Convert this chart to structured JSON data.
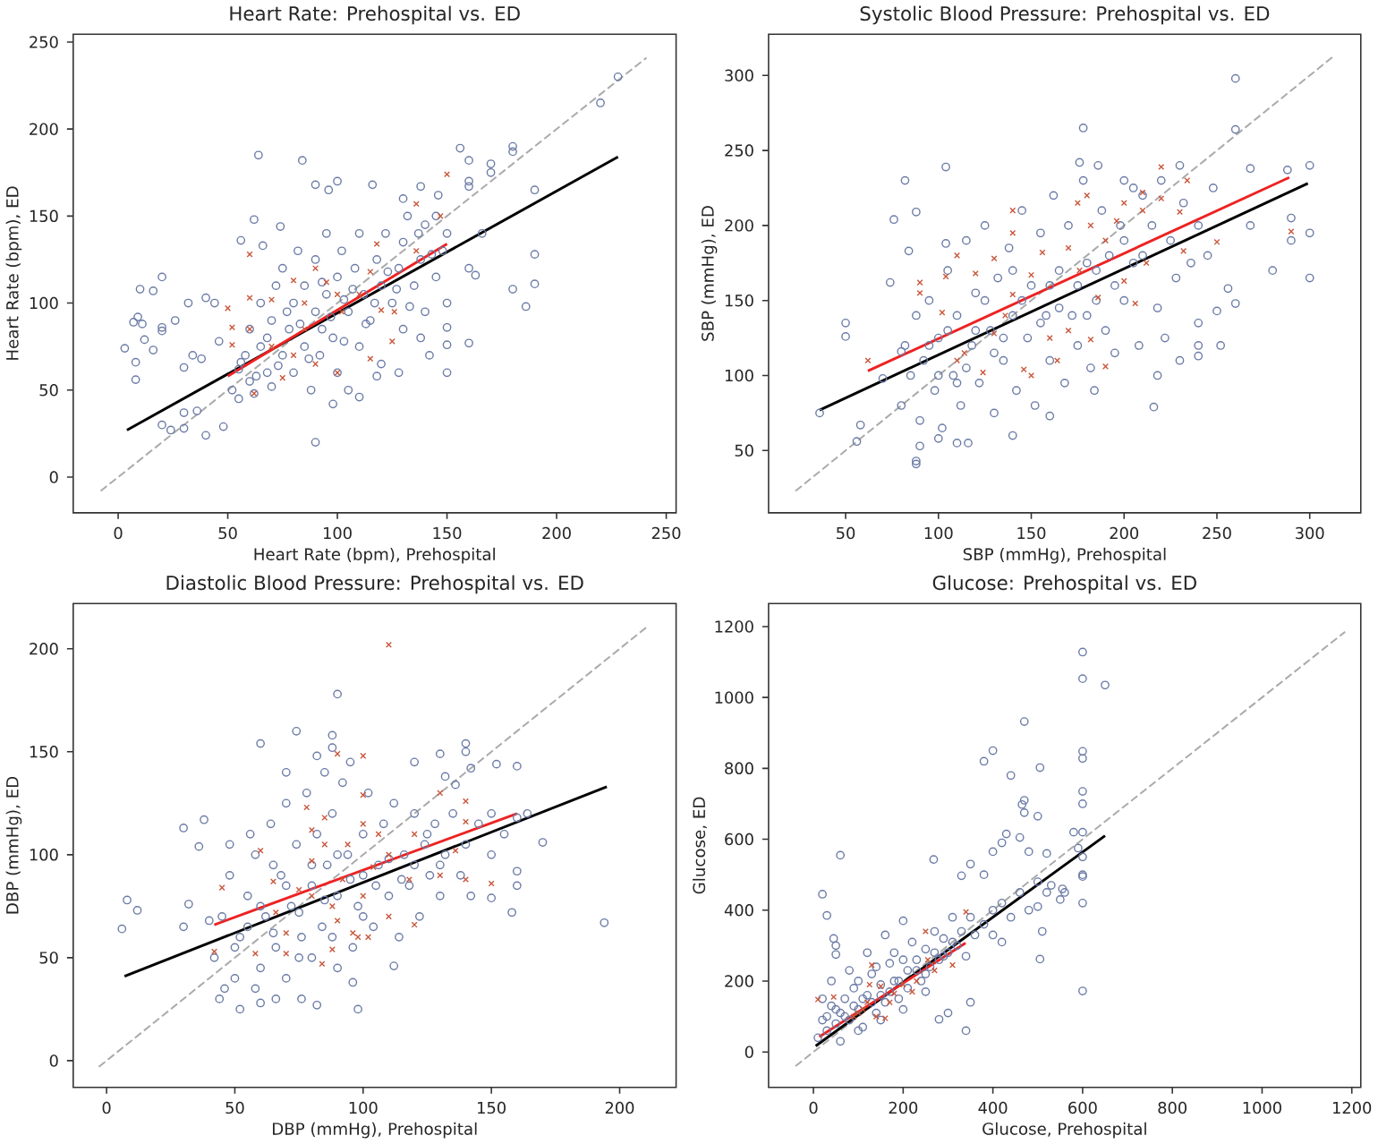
{
  "chart_data": [
    {
      "type": "scatter",
      "title": "Heart Rate: Prehospital vs. ED",
      "xlabel": "Heart Rate (bpm), Prehospital",
      "ylabel": "Heart Rate (bpm), ED",
      "xlim": [
        -20.5,
        254.5
      ],
      "ylim": [
        -20.5,
        254.5
      ],
      "xticks": [
        0,
        50,
        100,
        150,
        200,
        250
      ],
      "yticks": [
        0,
        50,
        100,
        150,
        200,
        250
      ],
      "series": [
        {
          "color": "#6b7ba6",
          "marker": "circle",
          "x": [
            228,
            220,
            180,
            180,
            156,
            160,
            170,
            170,
            64,
            84,
            190,
            190,
            190,
            186,
            180,
            160,
            150,
            150,
            150,
            163,
            160,
            166,
            160,
            160,
            3,
            7,
            8,
            8,
            9,
            10,
            11,
            12,
            16,
            16,
            20,
            20,
            20,
            26,
            30,
            32,
            34,
            38,
            40,
            44,
            46,
            20,
            24,
            30,
            30,
            36,
            40,
            48,
            90,
            98,
            110,
            62,
            56,
            66,
            74,
            100,
            96,
            90,
            116,
            130,
            138,
            146,
            52,
            55,
            55,
            58,
            60,
            60,
            62,
            65,
            65,
            68,
            70,
            70,
            72,
            75,
            75,
            78,
            80,
            80,
            82,
            85,
            85,
            88,
            90,
            90,
            92,
            95,
            95,
            98,
            100,
            100,
            102,
            105,
            108,
            110,
            110,
            112,
            115,
            118,
            120,
            120,
            122,
            125,
            128,
            130,
            130,
            132,
            135,
            138,
            140,
            140,
            142,
            145,
            148,
            145,
            118,
            105,
            128,
            138,
            150,
            150,
            56,
            63,
            68,
            73,
            77,
            83,
            87,
            93,
            97,
            103,
            107,
            113,
            117,
            123,
            127,
            133,
            137,
            143,
            103,
            93
          ],
          "values": [
            230,
            215,
            190,
            187,
            189,
            182,
            180,
            175,
            185,
            182,
            165,
            128,
            111,
            98,
            108,
            77,
            60,
            76,
            86,
            116,
            120,
            140,
            170,
            167,
            74,
            89,
            56,
            66,
            92,
            108,
            88,
            79,
            73,
            107,
            115,
            86,
            84,
            90,
            63,
            100,
            70,
            68,
            103,
            100,
            78,
            30,
            27,
            28,
            37,
            38,
            24,
            29,
            20,
            42,
            46,
            148,
            136,
            133,
            144,
            170,
            165,
            168,
            168,
            160,
            167,
            162,
            50,
            62,
            45,
            70,
            55,
            85,
            48,
            75,
            100,
            60,
            90,
            52,
            110,
            70,
            120,
            85,
            60,
            100,
            130,
            75,
            110,
            50,
            95,
            125,
            70,
            105,
            140,
            80,
            115,
            60,
            130,
            95,
            120,
            75,
            140,
            105,
            90,
            125,
            110,
            65,
            140,
            100,
            120,
            85,
            135,
            150,
            110,
            125,
            95,
            145,
            70,
            115,
            130,
            150,
            58,
            50,
            60,
            80,
            100,
            140,
            66,
            58,
            80,
            64,
            95,
            88,
            68,
            85,
            92,
            78,
            108,
            88,
            100,
            118,
            108,
            98,
            140,
            128,
            102,
            112
          ]
        },
        {
          "color": "#c9553a",
          "marker": "cross",
          "x": [
            50,
            52,
            52,
            60,
            60,
            60,
            62,
            70,
            75,
            80,
            85,
            90,
            95,
            100,
            102,
            110,
            115,
            118,
            120,
            125,
            126,
            115,
            100,
            136,
            136,
            147,
            150,
            90,
            80,
            70,
            85
          ],
          "values": [
            97,
            86,
            76,
            128,
            103,
            85,
            48,
            102,
            57,
            113,
            100,
            120,
            112,
            105,
            95,
            105,
            118,
            134,
            96,
            78,
            95,
            68,
            60,
            157,
            130,
            150,
            174,
            65,
            70,
            75,
            85
          ]
        },
        {
          "type": "line",
          "color": "#aaaaaa",
          "line_style": "dashed",
          "x": [
            -8,
            241
          ],
          "values": [
            -8,
            241
          ]
        },
        {
          "type": "line",
          "color": "#000000",
          "line_style": "solid",
          "x": [
            4,
            228
          ],
          "values": [
            27,
            184
          ]
        },
        {
          "type": "line",
          "color": "#ee2222",
          "line_style": "solid",
          "x": [
            50,
            150
          ],
          "values": [
            58,
            134
          ]
        }
      ]
    },
    {
      "type": "scatter",
      "title": "Systolic Blood Pressure: Prehospital vs. ED",
      "xlabel": "SBP (mmHg), Prehospital",
      "ylabel": "SBP (mmHg), ED",
      "xlim": [
        8.5,
        327.5
      ],
      "ylim": [
        8.5,
        327.5
      ],
      "xticks": [
        50,
        100,
        150,
        200,
        250,
        300
      ],
      "yticks": [
        50,
        100,
        150,
        200,
        250,
        300
      ],
      "series": [
        {
          "color": "#6b7ba6",
          "marker": "circle",
          "x": [
            260,
            260,
            178,
            104,
            82,
            76,
            88,
            84,
            50,
            50,
            56,
            58,
            36,
            88,
            88,
            90,
            100,
            110,
            116,
            140,
            160,
            184,
            216,
            218,
            290,
            290,
            300,
            300,
            300,
            280,
            268,
            288,
            268,
            250,
            260,
            256,
            252,
            240,
            240,
            210,
            230,
            200,
            186,
            176,
            104,
            70,
            74,
            80,
            80,
            82,
            85,
            88,
            90,
            92,
            95,
            98,
            100,
            102,
            105,
            108,
            110,
            112,
            115,
            118,
            120,
            122,
            125,
            128,
            130,
            132,
            135,
            138,
            140,
            142,
            145,
            148,
            150,
            152,
            155,
            158,
            160,
            162,
            165,
            168,
            170,
            172,
            175,
            178,
            180,
            182,
            185,
            188,
            190,
            192,
            195,
            198,
            200,
            205,
            208,
            210,
            215,
            218,
            220,
            222,
            225,
            228,
            230,
            232,
            236,
            240,
            240,
            245,
            248,
            95,
            105,
            115,
            125,
            135,
            145,
            155,
            165,
            175,
            185,
            195,
            205,
            100,
            120,
            140,
            160,
            180,
            200,
            110,
            130
          ],
          "values": [
            298,
            264,
            265,
            239,
            230,
            204,
            209,
            183,
            135,
            126,
            56,
            67,
            75,
            43,
            41,
            53,
            58,
            55,
            55,
            60,
            73,
            90,
            79,
            100,
            205,
            190,
            195,
            165,
            240,
            170,
            200,
            237,
            238,
            143,
            148,
            158,
            120,
            113,
            120,
            220,
            240,
            230,
            240,
            242,
            188,
            98,
            162,
            116,
            80,
            120,
            100,
            140,
            70,
            110,
            150,
            90,
            125,
            65,
            170,
            100,
            140,
            80,
            190,
            120,
            155,
            95,
            200,
            130,
            75,
            165,
            110,
            185,
            140,
            90,
            210,
            125,
            160,
            80,
            195,
            140,
            110,
            220,
            170,
            95,
            200,
            140,
            120,
            230,
            175,
            105,
            150,
            210,
            130,
            180,
            115,
            200,
            150,
            225,
            120,
            180,
            200,
            145,
            230,
            125,
            190,
            165,
            110,
            215,
            175,
            200,
            135,
            180,
            225,
            120,
            130,
            105,
            150,
            125,
            150,
            135,
            145,
            160,
            170,
            160,
            175,
            100,
            130,
            170,
            160,
            140,
            190,
            95,
            115
          ]
        },
        {
          "color": "#c9553a",
          "marker": "cross",
          "x": [
            62,
            90,
            90,
            102,
            104,
            110,
            110,
            114,
            120,
            124,
            130,
            130,
            136,
            140,
            140,
            140,
            150,
            150,
            146,
            156,
            160,
            164,
            170,
            170,
            175,
            180,
            182,
            186,
            190,
            190,
            196,
            200,
            200,
            210,
            210,
            220,
            220,
            230,
            234,
            250,
            290,
            182,
            176,
            206,
            232,
            212
          ],
          "values": [
            110,
            162,
            155,
            142,
            166,
            180,
            110,
            115,
            168,
            102,
            178,
            128,
            140,
            210,
            195,
            154,
            167,
            100,
            104,
            182,
            125,
            110,
            185,
            130,
            215,
            220,
            200,
            152,
            106,
            190,
            203,
            215,
            163,
            222,
            210,
            239,
            218,
            209,
            230,
            189,
            196,
            124,
            170,
            148,
            183,
            175
          ]
        },
        {
          "type": "line",
          "color": "#aaaaaa",
          "line_style": "dashed",
          "x": [
            23,
            313
          ],
          "values": [
            23,
            313
          ]
        },
        {
          "type": "line",
          "color": "#000000",
          "line_style": "solid",
          "x": [
            36,
            299
          ],
          "values": [
            77,
            228
          ]
        },
        {
          "type": "line",
          "color": "#ee2222",
          "line_style": "solid",
          "x": [
            62,
            289
          ],
          "values": [
            103,
            232
          ]
        }
      ]
    },
    {
      "type": "scatter",
      "title": "Diastolic Blood Pressure: Prehospital vs. ED",
      "xlabel": "DBP (mmHg), Prehospital",
      "ylabel": "DBP (mmHg), ED",
      "xlim": [
        -13,
        222
      ],
      "ylim": [
        -13,
        222
      ],
      "xticks": [
        0,
        50,
        100,
        150,
        200
      ],
      "yticks": [
        0,
        50,
        100,
        150,
        200
      ],
      "series": [
        {
          "color": "#6b7ba6",
          "marker": "circle",
          "x": [
            8,
            12,
            6,
            30,
            30,
            32,
            38,
            36,
            40,
            52,
            98,
            82,
            90,
            74,
            60,
            88,
            88,
            82,
            70,
            140,
            140,
            130,
            152,
            160,
            164,
            170,
            160,
            160,
            158,
            194,
            150,
            142,
            132,
            136,
            120,
            112,
            96,
            76,
            44,
            46,
            60,
            42,
            45,
            48,
            50,
            52,
            55,
            58,
            60,
            62,
            64,
            66,
            68,
            70,
            72,
            74,
            76,
            78,
            80,
            80,
            82,
            84,
            86,
            88,
            90,
            90,
            92,
            94,
            96,
            98,
            100,
            100,
            102,
            104,
            106,
            108,
            110,
            112,
            114,
            116,
            118,
            120,
            122,
            124,
            126,
            128,
            130,
            132,
            135,
            138,
            140,
            142,
            145,
            150,
            150,
            155,
            160,
            58,
            66,
            56,
            48,
            70,
            85,
            95,
            50,
            55,
            60,
            65,
            70,
            75,
            80,
            85,
            90,
            95,
            100,
            105,
            110,
            115,
            120,
            125,
            130,
            65,
            75,
            88
          ],
          "values": [
            78,
            73,
            64,
            65,
            113,
            76,
            117,
            104,
            68,
            25,
            25,
            27,
            178,
            160,
            154,
            158,
            152,
            148,
            140,
            154,
            150,
            149,
            144,
            143,
            120,
            106,
            92,
            85,
            72,
            67,
            79,
            142,
            138,
            134,
            145,
            46,
            38,
            30,
            30,
            35,
            28,
            50,
            70,
            90,
            40,
            60,
            80,
            100,
            45,
            70,
            115,
            55,
            90,
            40,
            75,
            105,
            60,
            130,
            50,
            85,
            110,
            65,
            95,
            120,
            45,
            80,
            135,
            100,
            55,
            75,
            110,
            90,
            130,
            65,
            95,
            115,
            80,
            125,
            60,
            100,
            85,
            120,
            70,
            105,
            90,
            115,
            80,
            100,
            120,
            90,
            105,
            80,
            115,
            100,
            120,
            110,
            118,
            35,
            30,
            110,
            105,
            125,
            140,
            145,
            55,
            65,
            75,
            62,
            85,
            72,
            95,
            78,
            100,
            88,
            70,
            85,
            98,
            88,
            95,
            110,
            95,
            95,
            50,
            60
          ]
        },
        {
          "color": "#c9553a",
          "marker": "cross",
          "x": [
            42,
            45,
            58,
            60,
            65,
            70,
            70,
            75,
            78,
            80,
            80,
            84,
            85,
            85,
            88,
            88,
            90,
            90,
            94,
            96,
            98,
            100,
            100,
            100,
            100,
            102,
            106,
            110,
            110,
            110,
            118,
            120,
            120,
            130,
            130,
            136,
            140,
            140,
            140,
            150,
            80,
            92,
            104,
            66
          ],
          "values": [
            53,
            84,
            52,
            102,
            87,
            62,
            52,
            83,
            123,
            112,
            97,
            47,
            118,
            105,
            75,
            54,
            149,
            68,
            105,
            62,
            60,
            148,
            129,
            115,
            80,
            60,
            110,
            202,
            100,
            70,
            88,
            110,
            66,
            130,
            90,
            102,
            126,
            116,
            88,
            86,
            80,
            88,
            94,
            72
          ]
        },
        {
          "type": "line",
          "color": "#aaaaaa",
          "line_style": "dashed",
          "x": [
            -3,
            211
          ],
          "values": [
            -3,
            211
          ]
        },
        {
          "type": "line",
          "color": "#000000",
          "line_style": "solid",
          "x": [
            7,
            195
          ],
          "values": [
            41,
            133
          ]
        },
        {
          "type": "line",
          "color": "#ee2222",
          "line_style": "solid",
          "x": [
            42,
            160
          ],
          "values": [
            66,
            120
          ]
        }
      ]
    },
    {
      "type": "scatter",
      "title": "Glucose: Prehospital vs. ED",
      "xlabel": "Glucose, Prehospital",
      "ylabel": "Glucose, ED",
      "xlim": [
        -100,
        1220
      ],
      "ylim": [
        -100,
        1265
      ],
      "xticks": [
        0,
        200,
        400,
        600,
        800,
        1000,
        1200
      ],
      "yticks": [
        0,
        200,
        400,
        600,
        800,
        1000,
        1200
      ],
      "series": [
        {
          "color": "#6b7ba6",
          "marker": "circle",
          "x": [
            600,
            600,
            650,
            470,
            400,
            380,
            440,
            505,
            600,
            600,
            600,
            600,
            470,
            465,
            470,
            500,
            430,
            460,
            580,
            600,
            590,
            600,
            600,
            600,
            600,
            600,
            505,
            340,
            280,
            60,
            20,
            30,
            45,
            50,
            50,
            268,
            330,
            350,
            400,
            420,
            480,
            510,
            550,
            555,
            530,
            420,
            350,
            300,
            400,
            380,
            500,
            560,
            520,
            10,
            20,
            30,
            40,
            50,
            60,
            70,
            80,
            90,
            100,
            110,
            120,
            130,
            140,
            150,
            160,
            170,
            180,
            190,
            200,
            210,
            220,
            230,
            240,
            250,
            260,
            270,
            280,
            290,
            300,
            310,
            320,
            330,
            340,
            350,
            360,
            380,
            400,
            420,
            440,
            460,
            480,
            500,
            520,
            40,
            20,
            60,
            100,
            150,
            200,
            250,
            120,
            160,
            200,
            80,
            30,
            50,
            70,
            90,
            110,
            130,
            150,
            170,
            190,
            210,
            230,
            250,
            270,
            290,
            310,
            100,
            140,
            180
          ],
          "values": [
            1128,
            1053,
            1035,
            932,
            850,
            820,
            780,
            802,
            848,
            828,
            735,
            700,
            710,
            698,
            675,
            665,
            615,
            605,
            620,
            620,
            575,
            550,
            500,
            495,
            420,
            172,
            262,
            60,
            92,
            555,
            445,
            385,
            320,
            300,
            275,
            543,
            497,
            530,
            565,
            590,
            565,
            340,
            430,
            460,
            470,
            310,
            140,
            110,
            400,
            500,
            410,
            450,
            560,
            40,
            90,
            60,
            130,
            80,
            110,
            150,
            90,
            180,
            120,
            70,
            160,
            220,
            110,
            190,
            140,
            250,
            200,
            150,
            260,
            180,
            310,
            230,
            200,
            290,
            240,
            340,
            260,
            320,
            280,
            380,
            300,
            340,
            270,
            380,
            330,
            360,
            330,
            420,
            380,
            450,
            400,
            480,
            450,
            200,
            150,
            30,
            60,
            90,
            120,
            170,
            280,
            330,
            370,
            230,
            100,
            120,
            100,
            130,
            150,
            140,
            160,
            170,
            200,
            230,
            260,
            220,
            280,
            270,
            310,
            200,
            240,
            280
          ]
        },
        {
          "color": "#c9553a",
          "marker": "cross",
          "x": [
            10,
            45,
            130,
            250,
            340,
            310,
            255,
            150,
            170,
            200,
            220,
            180,
            120,
            110,
            100,
            140,
            160,
            90,
            230,
            270,
            125
          ],
          "values": [
            148,
            155,
            245,
            340,
            395,
            245,
            260,
            185,
            140,
            190,
            170,
            165,
            140,
            120,
            110,
            100,
            95,
            100,
            200,
            230,
            190
          ]
        },
        {
          "type": "line",
          "color": "#aaaaaa",
          "line_style": "dashed",
          "x": [
            -40,
            1185
          ],
          "values": [
            -40,
            1185
          ]
        },
        {
          "type": "line",
          "color": "#000000",
          "line_style": "solid",
          "x": [
            5,
            650
          ],
          "values": [
            17,
            610
          ]
        },
        {
          "type": "line",
          "color": "#ee2222",
          "line_style": "solid",
          "x": [
            13,
            339
          ],
          "values": [
            43,
            307
          ]
        }
      ]
    }
  ]
}
